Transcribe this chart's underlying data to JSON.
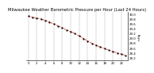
{
  "title": "Milwaukee Weather Barometric Pressure per Hour (Last 24 Hours)",
  "ylabel": "inHg",
  "hours": [
    0,
    1,
    2,
    3,
    4,
    5,
    6,
    7,
    8,
    9,
    10,
    11,
    12,
    13,
    14,
    15,
    16,
    17,
    18,
    19,
    20,
    21,
    22,
    23
  ],
  "pressure": [
    29.92,
    29.88,
    29.85,
    29.8,
    29.75,
    29.68,
    29.6,
    29.52,
    29.44,
    29.36,
    29.28,
    29.2,
    29.1,
    29.0,
    28.9,
    28.8,
    28.72,
    28.65,
    28.58,
    28.52,
    28.46,
    28.4,
    28.35,
    28.3
  ],
  "line_color": "#cc0000",
  "marker_color": "#000000",
  "bg_color": "#ffffff",
  "grid_color": "#888888",
  "ylim_min": 28.1,
  "ylim_max": 30.1,
  "yticks": [
    28.2,
    28.4,
    28.6,
    28.8,
    29.0,
    29.2,
    29.4,
    29.6,
    29.8,
    30.0
  ],
  "title_fontsize": 3.8,
  "tick_fontsize": 2.8,
  "label_fontsize": 3.0,
  "grid_positions": [
    0,
    2,
    4,
    6,
    8,
    10,
    12,
    14,
    16,
    18,
    20,
    22
  ]
}
